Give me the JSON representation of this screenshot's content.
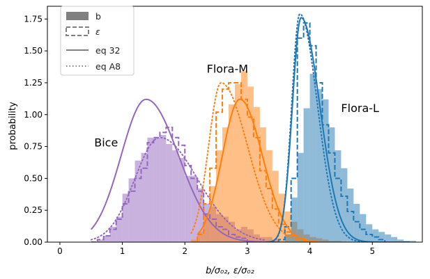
{
  "chart_data": {
    "type": "histogram",
    "xlabel": "b/σ₀₂, ε/σ₀₂",
    "ylabel": "probability",
    "xlim": [
      -0.2,
      5.8
    ],
    "ylim": [
      0,
      1.85
    ],
    "xticks": [
      "0",
      "1",
      "2",
      "3",
      "4",
      "5"
    ],
    "yticks": [
      "0.00",
      "0.25",
      "0.50",
      "0.75",
      "1.00",
      "1.25",
      "1.50",
      "1.75"
    ],
    "legend": {
      "position": "upper-left",
      "entries": [
        {
          "label": "b",
          "style": "filled-bar"
        },
        {
          "label": "ε",
          "style": "dashed-step"
        },
        {
          "label": "eq 32",
          "style": "solid-line"
        },
        {
          "label": "eq A8",
          "style": "dotted-line"
        }
      ]
    },
    "annotations": [
      {
        "text": "Bice",
        "x": 0.55,
        "y": 0.75
      },
      {
        "text": "Flora-M",
        "x": 2.35,
        "y": 1.33
      },
      {
        "text": "Flora-L",
        "x": 4.5,
        "y": 1.02
      }
    ],
    "groups": [
      {
        "name": "Bice",
        "color": "#9467bd",
        "hist_b": {
          "edges": [
            0.5,
            0.6,
            0.7,
            0.8,
            0.9,
            1.0,
            1.1,
            1.2,
            1.3,
            1.4,
            1.5,
            1.6,
            1.7,
            1.8,
            1.9,
            2.0,
            2.1,
            2.2,
            2.3,
            2.4,
            2.5,
            2.6,
            2.7,
            2.8,
            2.9,
            3.0,
            3.1,
            3.2,
            3.3,
            3.4,
            3.5,
            3.6
          ],
          "values": [
            0.0,
            0.02,
            0.05,
            0.12,
            0.2,
            0.38,
            0.5,
            0.64,
            0.7,
            0.82,
            0.82,
            0.84,
            0.77,
            0.72,
            0.66,
            0.52,
            0.52,
            0.42,
            0.3,
            0.28,
            0.22,
            0.2,
            0.16,
            0.1,
            0.12,
            0.1,
            0.06,
            0.04,
            0.04,
            0.02,
            0.01
          ]
        },
        "hist_eps": {
          "edges": [
            0.5,
            0.6,
            0.7,
            0.8,
            0.9,
            1.0,
            1.1,
            1.2,
            1.3,
            1.4,
            1.5,
            1.6,
            1.7,
            1.8,
            1.9,
            2.0,
            2.1,
            2.2,
            2.3,
            2.4,
            2.5,
            2.6,
            2.7,
            2.8,
            2.9,
            3.0,
            3.1
          ],
          "values": [
            0.0,
            0.02,
            0.05,
            0.1,
            0.18,
            0.3,
            0.4,
            0.5,
            0.58,
            0.78,
            0.82,
            0.86,
            0.9,
            0.82,
            0.76,
            0.6,
            0.5,
            0.4,
            0.22,
            0.18,
            0.12,
            0.1,
            0.06,
            0.04,
            0.03,
            0.0
          ]
        },
        "curve_eq32": {
          "mode": 1.38,
          "peak": 1.12,
          "sigma_left": 0.4,
          "sigma_right": 0.52,
          "xmin": 0.5,
          "xmax": 3.5
        },
        "curve_eqA8": {
          "mode": 1.6,
          "peak": 0.82,
          "sigma_left": 0.4,
          "sigma_right": 0.6,
          "xmin": 0.5,
          "xmax": 3.3
        }
      },
      {
        "name": "Flora-M",
        "color": "#ff7f0e",
        "hist_b": {
          "edges": [
            2.1,
            2.2,
            2.3,
            2.4,
            2.5,
            2.6,
            2.7,
            2.8,
            2.9,
            3.0,
            3.1,
            3.2,
            3.3,
            3.4,
            3.5,
            3.6,
            3.7,
            3.8,
            3.9,
            4.0,
            4.1,
            4.2,
            4.3,
            4.4,
            4.5
          ],
          "values": [
            0.02,
            0.08,
            0.22,
            0.44,
            0.72,
            0.9,
            1.08,
            1.24,
            1.34,
            1.22,
            1.06,
            0.9,
            0.72,
            0.56,
            0.38,
            0.24,
            0.16,
            0.1,
            0.06,
            0.04,
            0.03,
            0.02,
            0.01,
            0.01
          ]
        },
        "hist_eps": {
          "edges": [
            2.1,
            2.2,
            2.3,
            2.4,
            2.5,
            2.6,
            2.7,
            2.8,
            2.9,
            3.0,
            3.1,
            3.2,
            3.3,
            3.4,
            3.5,
            3.6,
            3.7,
            3.8,
            3.9,
            4.0
          ],
          "values": [
            0.0,
            0.06,
            0.3,
            0.58,
            1.02,
            1.2,
            1.25,
            1.25,
            1.12,
            0.98,
            0.82,
            0.56,
            0.42,
            0.26,
            0.14,
            0.08,
            0.05,
            0.03,
            0.01
          ]
        },
        "curve_eq32": {
          "mode": 2.88,
          "peak": 1.12,
          "sigma_left": 0.28,
          "sigma_right": 0.36,
          "xmin": 2.2,
          "xmax": 4.2
        },
        "curve_eqA8": {
          "mode": 2.58,
          "peak": 1.25,
          "sigma_left": 0.2,
          "sigma_right": 0.42,
          "xmin": 2.1,
          "xmax": 4.6
        }
      },
      {
        "name": "Flora-L",
        "color": "#1f77b4",
        "hist_b": {
          "edges": [
            3.6,
            3.7,
            3.8,
            3.9,
            4.0,
            4.1,
            4.2,
            4.3,
            4.4,
            4.5,
            4.6,
            4.7,
            4.8,
            4.9,
            5.0,
            5.1,
            5.2,
            5.3,
            5.4,
            5.5,
            5.6,
            5.7
          ],
          "values": [
            0.06,
            0.35,
            0.7,
            1.05,
            1.32,
            1.2,
            1.12,
            0.9,
            0.72,
            0.58,
            0.42,
            0.3,
            0.22,
            0.14,
            0.1,
            0.08,
            0.06,
            0.04,
            0.02,
            0.01,
            0.01
          ]
        },
        "hist_eps": {
          "edges": [
            3.5,
            3.6,
            3.7,
            3.8,
            3.9,
            4.0,
            4.1,
            4.2,
            4.3,
            4.4,
            4.5,
            4.6,
            4.7,
            4.8,
            4.9,
            5.0,
            5.1,
            5.2,
            5.3
          ],
          "values": [
            0.02,
            0.12,
            0.5,
            1.6,
            1.72,
            1.54,
            1.25,
            0.92,
            0.7,
            0.5,
            0.36,
            0.24,
            0.16,
            0.1,
            0.06,
            0.04,
            0.02,
            0.0
          ]
        },
        "curve_eq32": {
          "mode": 3.86,
          "peak": 1.76,
          "sigma_left": 0.14,
          "sigma_right": 0.3,
          "xmin": 3.3,
          "xmax": 5.6
        },
        "curve_eqA8": {
          "mode": 3.84,
          "peak": 1.79,
          "sigma_left": 0.13,
          "sigma_right": 0.28,
          "xmin": 3.3,
          "xmax": 5.6
        }
      }
    ]
  }
}
